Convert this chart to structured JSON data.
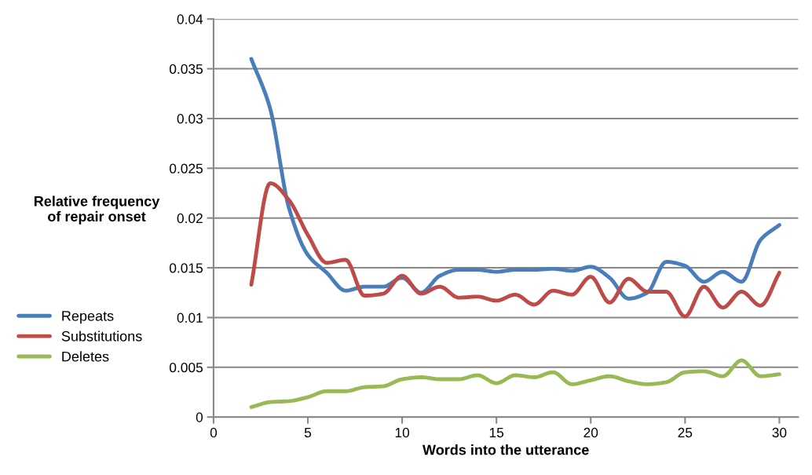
{
  "chart_data": {
    "type": "line",
    "xlabel": "Words into the utterance",
    "ylabel": "Relative frequency\nof repair onset",
    "x": [
      2,
      3,
      4,
      5,
      6,
      7,
      8,
      9,
      10,
      11,
      12,
      13,
      14,
      15,
      16,
      17,
      18,
      19,
      20,
      21,
      22,
      23,
      24,
      25,
      26,
      27,
      28,
      29,
      30
    ],
    "series": [
      {
        "name": "Repeats",
        "color": "#4a7ebb",
        "values": [
          0.036,
          0.031,
          0.021,
          0.0163,
          0.0145,
          0.0127,
          0.0131,
          0.0131,
          0.014,
          0.0125,
          0.0142,
          0.0148,
          0.0148,
          0.0146,
          0.0148,
          0.0148,
          0.0149,
          0.0147,
          0.0151,
          0.014,
          0.0119,
          0.0125,
          0.0156,
          0.0152,
          0.0136,
          0.0146,
          0.0136,
          0.0178,
          0.0193
        ]
      },
      {
        "name": "Substitutions",
        "color": "#be4b48",
        "values": [
          0.0133,
          0.0235,
          0.0218,
          0.0183,
          0.0155,
          0.0158,
          0.0122,
          0.0124,
          0.0142,
          0.0124,
          0.0131,
          0.012,
          0.0121,
          0.0117,
          0.0123,
          0.0113,
          0.0127,
          0.0123,
          0.0141,
          0.0115,
          0.0139,
          0.0126,
          0.0126,
          0.0101,
          0.0131,
          0.011,
          0.0126,
          0.0112,
          0.0145
        ]
      },
      {
        "name": "Deletes",
        "color": "#98b954",
        "values": [
          0.001,
          0.0015,
          0.0016,
          0.002,
          0.0026,
          0.0026,
          0.003,
          0.0031,
          0.0038,
          0.004,
          0.0038,
          0.0038,
          0.0042,
          0.0034,
          0.0042,
          0.004,
          0.0045,
          0.0033,
          0.0037,
          0.0041,
          0.0036,
          0.0033,
          0.0035,
          0.0045,
          0.0046,
          0.0041,
          0.0057,
          0.0041,
          0.0043
        ]
      }
    ],
    "xlim": [
      0,
      31
    ],
    "xticks": [
      0,
      5,
      10,
      15,
      20,
      25,
      30
    ],
    "ylim": [
      0,
      0.04
    ],
    "yticks": [
      0,
      0.005,
      0.01,
      0.015,
      0.02,
      0.025,
      0.03,
      0.035,
      0.04
    ],
    "grid": "y",
    "legend": "left",
    "marker": "none",
    "line_style": "solid"
  }
}
